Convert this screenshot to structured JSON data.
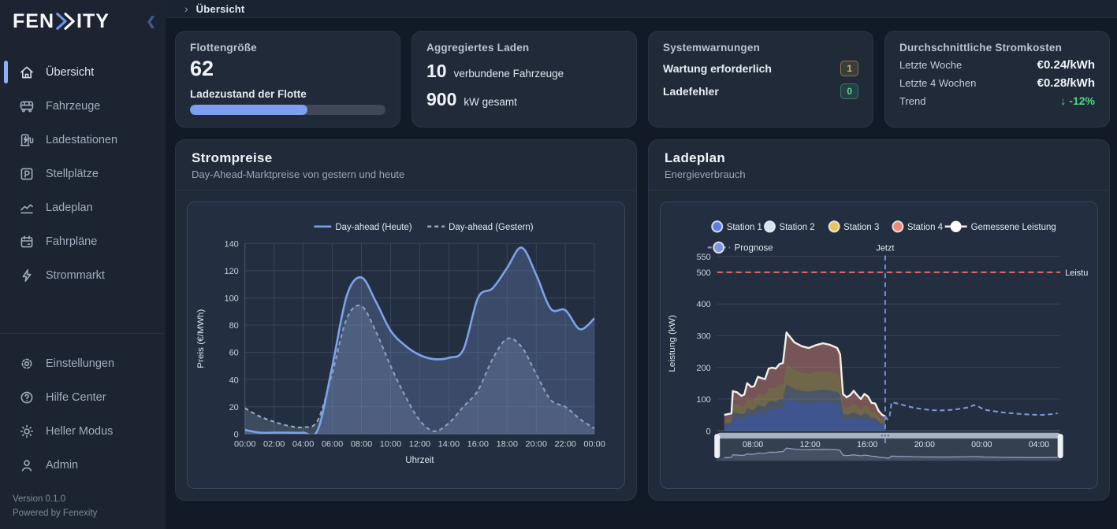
{
  "sidebar": {
    "logo_pre": "FEN",
    "logo_post": "ITY",
    "collapse_icon": "❮",
    "items": [
      {
        "label": "Übersicht",
        "icon": "home-icon",
        "active": true
      },
      {
        "label": "Fahrzeuge",
        "icon": "bus-icon",
        "active": false
      },
      {
        "label": "Ladestationen",
        "icon": "charging-station-icon",
        "active": false
      },
      {
        "label": "Stellplätze",
        "icon": "parking-icon",
        "active": false
      },
      {
        "label": "Ladeplan",
        "icon": "chart-icon",
        "active": false
      },
      {
        "label": "Fahrpläne",
        "icon": "calendar-icon",
        "active": false
      },
      {
        "label": "Strommarkt",
        "icon": "bolt-icon",
        "active": false
      }
    ],
    "footer_items": [
      {
        "label": "Einstellungen",
        "icon": "gear-icon"
      },
      {
        "label": "Hilfe Center",
        "icon": "help-icon"
      },
      {
        "label": "Heller Modus",
        "icon": "sun-icon"
      },
      {
        "label": "Admin",
        "icon": "user-icon"
      }
    ],
    "version": "Version 0.1.0",
    "powered": "Powered by Fenexity"
  },
  "topbar": {
    "chevron": "›",
    "breadcrumb": "Übersicht"
  },
  "cards": {
    "fleet": {
      "title": "Flottengröße",
      "value": "62",
      "progress_label": "Ladezustand der Flotte",
      "progress_pct": 60
    },
    "charging": {
      "title": "Aggregiertes Laden",
      "vehicles_value": "10",
      "vehicles_label": "verbundene Fahrzeuge",
      "power_value": "900",
      "power_label": "kW gesamt"
    },
    "warnings": {
      "title": "Systemwarnungen",
      "rows": [
        {
          "label": "Wartung erforderlich",
          "value": "1",
          "type": "warn"
        },
        {
          "label": "Ladefehler",
          "value": "0",
          "type": "ok"
        }
      ]
    },
    "costs": {
      "title": "Durchschnittliche Stromkosten",
      "rows": [
        {
          "label": "Letzte Woche",
          "value": "€0.24/kWh"
        },
        {
          "label": "Letzte 4 Wochen",
          "value": "€0.28/kWh"
        }
      ],
      "trend_label": "Trend",
      "trend_value": "↓ -12%"
    }
  },
  "price_card": {
    "title": "Strompreise",
    "subtitle": "Day-Ahead-Marktpreise von gestern und heute"
  },
  "schedule_card": {
    "title": "Ladeplan",
    "subtitle": "Energieverbrauch"
  },
  "chart_data": [
    {
      "type": "line",
      "title": "Strompreise",
      "xlabel": "Uhrzeit",
      "ylabel": "Preis (€/MWh)",
      "ylim": [
        0,
        140
      ],
      "yticks": [
        0,
        20,
        40,
        60,
        80,
        100,
        120,
        140
      ],
      "xtick_labels": [
        "00:00",
        "02:00",
        "04:00",
        "06:00",
        "08:00",
        "10:00",
        "12:00",
        "14:00",
        "16:00",
        "18:00",
        "20:00",
        "22:00",
        "00:00"
      ],
      "grid": true,
      "legend_position": "top",
      "x_hours": [
        0,
        1,
        2,
        3,
        4,
        5,
        6,
        7,
        8,
        9,
        10,
        11,
        12,
        13,
        14,
        15,
        16,
        17,
        18,
        19,
        20,
        21,
        22,
        23,
        24
      ],
      "series": [
        {
          "name": "Day-ahead (Gestern)",
          "color": "#94a8bf",
          "line": "dashed",
          "fill": "rgba(150,168,196,0.24)",
          "values": [
            19,
            13,
            9,
            6,
            5,
            10,
            45,
            85,
            94,
            75,
            50,
            28,
            10,
            2,
            8,
            20,
            32,
            55,
            70,
            64,
            44,
            25,
            20,
            11,
            4
          ]
        },
        {
          "name": "Day-ahead (Heute)",
          "color": "#7da1ea",
          "line": "solid",
          "fill": "rgba(112,140,198,0.30)",
          "values": [
            3,
            1,
            1,
            1,
            1,
            3,
            50,
            102,
            115,
            97,
            76,
            65,
            58,
            55,
            56,
            62,
            100,
            107,
            122,
            137,
            117,
            92,
            91,
            77,
            85
          ]
        }
      ]
    },
    {
      "type": "area",
      "title": "Ladeplan",
      "xlabel": "",
      "ylabel": "Leistung (kW)",
      "ylim": [
        0,
        550
      ],
      "yticks": [
        0,
        100,
        200,
        300,
        400,
        500,
        550
      ],
      "xlim_hours": [
        5.5,
        29.5
      ],
      "xticks": [
        {
          "hour": 8,
          "label": "08:00"
        },
        {
          "hour": 12,
          "label": "12:00"
        },
        {
          "hour": 16,
          "label": "16:00"
        },
        {
          "hour": 20,
          "label": "20:00"
        },
        {
          "hour": 24,
          "label": "00:00"
        },
        {
          "hour": 28,
          "label": "04:00"
        }
      ],
      "limit_line": {
        "value": 500,
        "label": "Leistu",
        "color": "#e06c6c"
      },
      "now_line": {
        "hour": 17.25,
        "label": "Jetzt",
        "color": "#6e91dd"
      },
      "stations": [
        {
          "name": "Station 1",
          "color": "#5b7ce0",
          "fill": "rgba(91,124,224,0.50)",
          "fraction": 0.33
        },
        {
          "name": "Station 2",
          "color": "#d8e2ee",
          "fill": "rgba(216,226,238,0.22)",
          "fraction": 0.14
        },
        {
          "name": "Station 3",
          "color": "#eec35a",
          "fill": "rgba(238,195,90,0.38)",
          "fraction": 0.22
        },
        {
          "name": "Station 4",
          "color": "#ec8a78",
          "fill": "rgba(236,138,120,0.42)",
          "fraction": 0.31
        }
      ],
      "measured": {
        "name": "Gemessene Leistung",
        "color": "#f3efe6",
        "points": [
          [
            6,
            50
          ],
          [
            6.3,
            53
          ],
          [
            6.5,
            55
          ],
          [
            6.6,
            125
          ],
          [
            6.9,
            121
          ],
          [
            7.2,
            110
          ],
          [
            7.4,
            114
          ],
          [
            7.6,
            150
          ],
          [
            7.9,
            138
          ],
          [
            8.1,
            141
          ],
          [
            8.35,
            170
          ],
          [
            8.6,
            166
          ],
          [
            8.85,
            163
          ],
          [
            9.1,
            196
          ],
          [
            9.35,
            199
          ],
          [
            9.6,
            196
          ],
          [
            9.85,
            210
          ],
          [
            10.1,
            214
          ],
          [
            10.35,
            310
          ],
          [
            10.6,
            296
          ],
          [
            10.9,
            279
          ],
          [
            11.4,
            267
          ],
          [
            11.9,
            261
          ],
          [
            12.4,
            270
          ],
          [
            12.9,
            276
          ],
          [
            13.4,
            271
          ],
          [
            13.9,
            261
          ],
          [
            14.1,
            241
          ],
          [
            14.3,
            116
          ],
          [
            14.55,
            106
          ],
          [
            14.8,
            112
          ],
          [
            15.05,
            126
          ],
          [
            15.3,
            112
          ],
          [
            15.55,
            100
          ],
          [
            15.8,
            116
          ],
          [
            16.05,
            108
          ],
          [
            16.3,
            88
          ],
          [
            16.55,
            86
          ],
          [
            16.8,
            62
          ],
          [
            17.05,
            50
          ],
          [
            17.25,
            46
          ]
        ]
      },
      "forecast": {
        "name": "Prognose",
        "color": "#8096dd",
        "points": [
          [
            17.25,
            46
          ],
          [
            17.4,
            36
          ],
          [
            17.55,
            42
          ],
          [
            17.7,
            90
          ],
          [
            18.1,
            86
          ],
          [
            18.6,
            80
          ],
          [
            19.1,
            74
          ],
          [
            19.6,
            70
          ],
          [
            20.1,
            67
          ],
          [
            20.6,
            65
          ],
          [
            21.1,
            64
          ],
          [
            21.6,
            65
          ],
          [
            22.1,
            67
          ],
          [
            22.6,
            70
          ],
          [
            23.1,
            74
          ],
          [
            23.45,
            81
          ],
          [
            23.7,
            78
          ],
          [
            24.2,
            66
          ],
          [
            24.7,
            63
          ],
          [
            25.4,
            58
          ],
          [
            26.4,
            54
          ],
          [
            27.4,
            51
          ],
          [
            28.2,
            50
          ],
          [
            28.8,
            52
          ],
          [
            29.3,
            55
          ]
        ]
      }
    }
  ]
}
